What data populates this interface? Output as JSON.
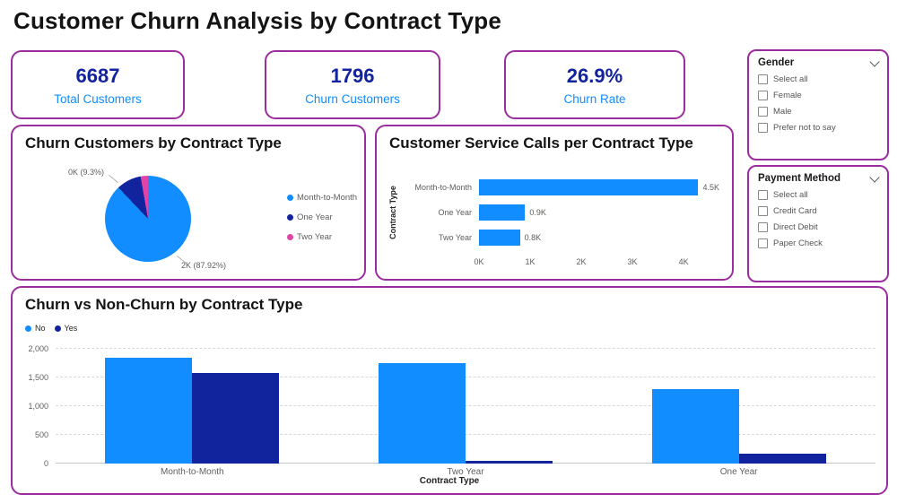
{
  "title": "Customer Churn Analysis by Contract Type",
  "colors": {
    "accent_border": "#9B2D9F",
    "kpi_value": "#12239E",
    "kpi_label": "#118DFF",
    "blue": "#118DFF",
    "navy": "#12239E",
    "pink": "#E044A7",
    "axis_text": "#605E5C"
  },
  "kpis": [
    {
      "value": "6687",
      "label": "Total Customers"
    },
    {
      "value": "1796",
      "label": "Churn Customers"
    },
    {
      "value": "26.9%",
      "label": "Churn Rate"
    }
  ],
  "filters": [
    {
      "title": "Gender",
      "options": [
        "Select all",
        "Female",
        "Male",
        "Prefer not to say"
      ]
    },
    {
      "title": "Payment Method",
      "options": [
        "Select all",
        "Credit Card",
        "Direct Debit",
        "Paper Check"
      ]
    }
  ],
  "chart_data": [
    {
      "type": "pie",
      "title": "Churn Customers by Contract Type",
      "categories": [
        "Month-to-Month",
        "One Year",
        "Two Year"
      ],
      "values": [
        87.92,
        9.3,
        2.78
      ],
      "point_labels": [
        "2K (87.92%)",
        "0K (9.3%)"
      ],
      "legend_position": "right"
    },
    {
      "type": "bar",
      "orientation": "horizontal",
      "title": "Customer Service Calls per Contract Type",
      "categories": [
        "Month-to-Month",
        "One Year",
        "Two Year"
      ],
      "values": [
        4500,
        900,
        800
      ],
      "value_labels": [
        "4.5K",
        "0.9K",
        "0.8K"
      ],
      "x_ticks": [
        "0K",
        "1K",
        "2K",
        "3K",
        "4K"
      ],
      "x_tick_values": [
        0,
        1000,
        2000,
        3000,
        4000
      ],
      "xlim": [
        0,
        4700
      ],
      "ylabel": "Contract Type"
    },
    {
      "type": "bar",
      "title": "Churn vs Non-Churn by Contract Type",
      "categories": [
        "Month-to-Month",
        "Two Year",
        "One Year"
      ],
      "series": [
        {
          "name": "No",
          "values": [
            1850,
            1750,
            1300
          ]
        },
        {
          "name": "Yes",
          "values": [
            1580,
            50,
            170
          ]
        }
      ],
      "y_ticks": [
        "0",
        "500",
        "1,000",
        "1,500",
        "2,000"
      ],
      "y_tick_values": [
        0,
        500,
        1000,
        1500,
        2000
      ],
      "ylim": [
        0,
        2000
      ],
      "xlabel": "Contract Type",
      "legend_position": "top-left",
      "grid": true
    }
  ]
}
